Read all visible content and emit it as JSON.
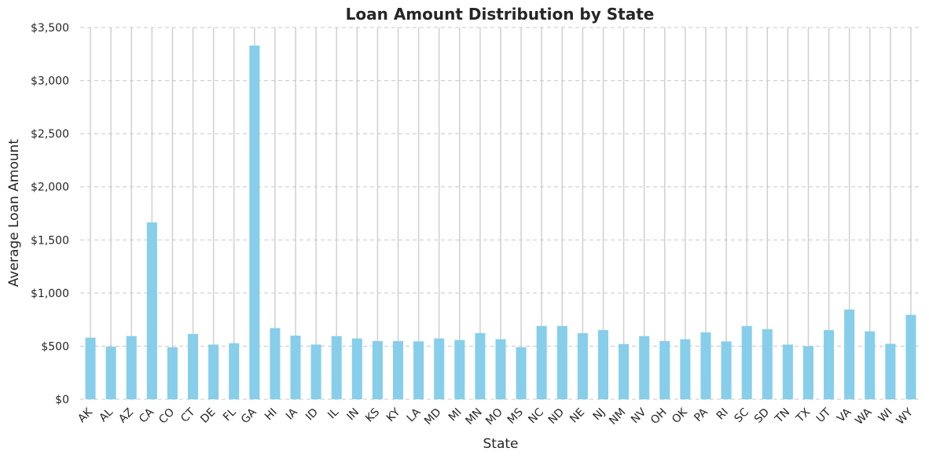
{
  "chart_data": {
    "type": "bar",
    "title": "Loan Amount Distribution by State",
    "xlabel": "State",
    "ylabel": "Average Loan Amount",
    "ylim": [
      0,
      3500
    ],
    "yticks": [
      0,
      500,
      1000,
      1500,
      2000,
      2500,
      3000,
      3500
    ],
    "ytick_labels": [
      "$0",
      "$500",
      "$1,000",
      "$1,500",
      "$2,000",
      "$2,500",
      "$3,000",
      "$3,500"
    ],
    "grid": true,
    "legend": "none",
    "bar_color": "#87ceeb",
    "categories": [
      "AK",
      "AL",
      "AZ",
      "CA",
      "CO",
      "CT",
      "DE",
      "FL",
      "GA",
      "HI",
      "IA",
      "ID",
      "IL",
      "IN",
      "KS",
      "KY",
      "LA",
      "MD",
      "MI",
      "MN",
      "MO",
      "MS",
      "NC",
      "ND",
      "NE",
      "NJ",
      "NM",
      "NV",
      "OH",
      "OK",
      "PA",
      "RI",
      "SC",
      "SD",
      "TN",
      "TX",
      "UT",
      "VA",
      "WA",
      "WI",
      "WY"
    ],
    "values": [
      580,
      495,
      595,
      1665,
      490,
      615,
      515,
      528,
      3330,
      670,
      600,
      515,
      595,
      572,
      548,
      548,
      545,
      572,
      558,
      623,
      565,
      490,
      690,
      690,
      623,
      652,
      520,
      595,
      548,
      565,
      630,
      545,
      690,
      660,
      515,
      500,
      652,
      845,
      640,
      522,
      795
    ]
  }
}
